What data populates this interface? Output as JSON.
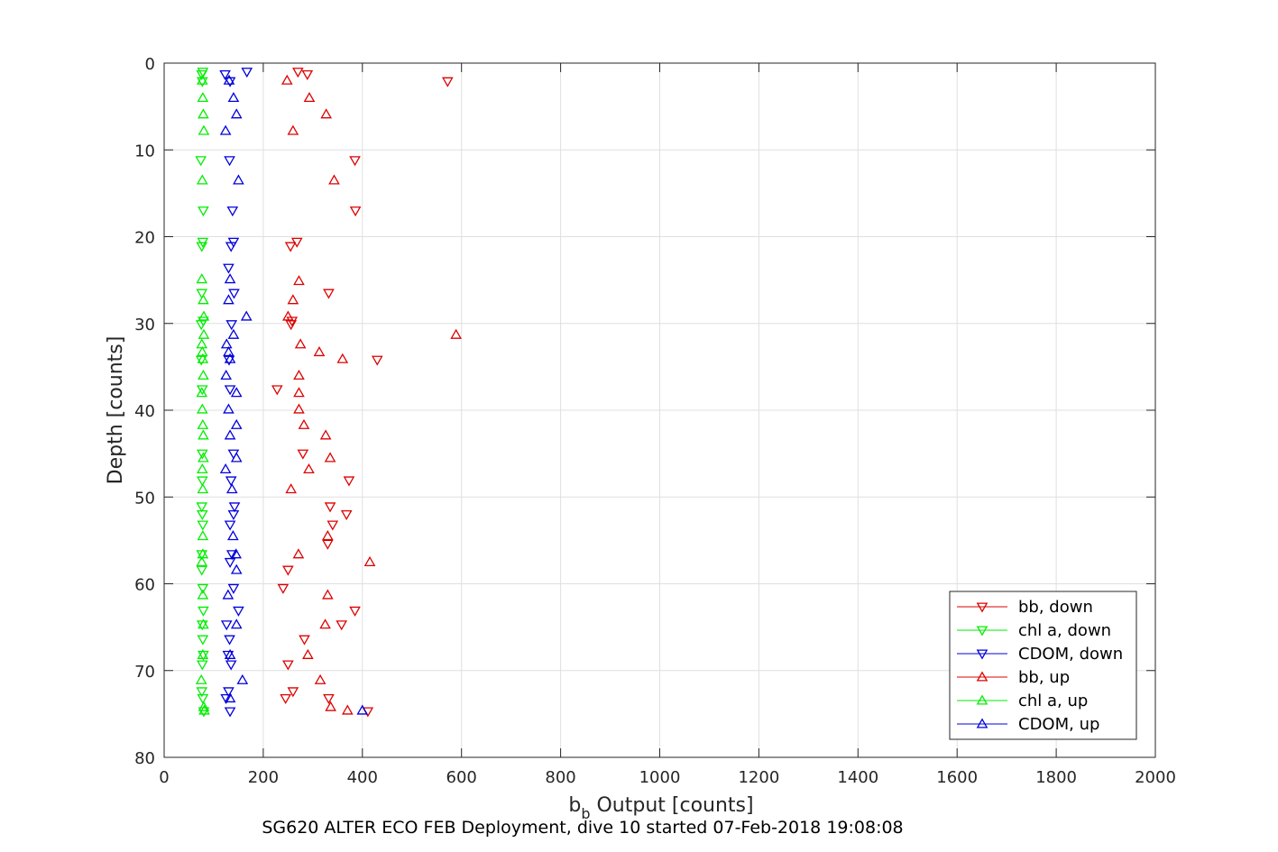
{
  "caption": "SG620 ALTER ECO FEB Deployment, dive 10 started 07-Feb-2018 19:08:08",
  "chart_data": {
    "type": "scatter",
    "xlabel": "b",
    "xlabel_sub": "b",
    "xlabel_rest": " Output [counts]",
    "ylabel": "Depth [counts]",
    "xlim": [
      0,
      2000
    ],
    "ylim": [
      0,
      80
    ],
    "y_reversed": true,
    "grid": true,
    "legend_position": "lower-right",
    "x_ticks": [
      "0",
      "200",
      "400",
      "600",
      "800",
      "1000",
      "1200",
      "1400",
      "1600",
      "1800",
      "2000"
    ],
    "y_ticks": [
      "0",
      "10",
      "20",
      "30",
      "40",
      "50",
      "60",
      "70",
      "80"
    ],
    "series": [
      {
        "name": "bb, down",
        "color": "#dd0000",
        "marker": "triangle-down",
        "points": [
          [
            270,
            1.0
          ],
          [
            289,
            1.3
          ],
          [
            572,
            2.1
          ],
          [
            385,
            11.2
          ],
          [
            386,
            17.0
          ],
          [
            268,
            20.6
          ],
          [
            255,
            21.1
          ],
          [
            332,
            26.5
          ],
          [
            258,
            29.7
          ],
          [
            256,
            30.1
          ],
          [
            430,
            34.2
          ],
          [
            228,
            37.6
          ],
          [
            280,
            45.0
          ],
          [
            373,
            48.1
          ],
          [
            335,
            51.1
          ],
          [
            368,
            52.0
          ],
          [
            340,
            53.2
          ],
          [
            330,
            55.4
          ],
          [
            250,
            58.4
          ],
          [
            240,
            60.5
          ],
          [
            385,
            63.1
          ],
          [
            358,
            64.7
          ],
          [
            283,
            66.4
          ],
          [
            250,
            69.3
          ],
          [
            260,
            72.4
          ],
          [
            332,
            73.2
          ],
          [
            245,
            73.2
          ],
          [
            411,
            74.7
          ]
        ]
      },
      {
        "name": "chl a, down",
        "color": "#00ee00",
        "marker": "triangle-down",
        "points": [
          [
            78,
            1.0
          ],
          [
            76,
            1.3
          ],
          [
            77,
            2.1
          ],
          [
            74,
            11.2
          ],
          [
            79,
            17.0
          ],
          [
            78,
            20.6
          ],
          [
            76,
            21.1
          ],
          [
            76,
            26.5
          ],
          [
            79,
            29.7
          ],
          [
            75,
            30.1
          ],
          [
            75,
            34.2
          ],
          [
            77,
            37.6
          ],
          [
            77,
            45.0
          ],
          [
            77,
            48.1
          ],
          [
            76,
            51.1
          ],
          [
            77,
            52.0
          ],
          [
            78,
            53.2
          ],
          [
            76,
            56.6
          ],
          [
            76,
            58.4
          ],
          [
            78,
            60.5
          ],
          [
            79,
            63.1
          ],
          [
            77,
            64.7
          ],
          [
            78,
            66.4
          ],
          [
            79,
            68.2
          ],
          [
            77,
            69.3
          ],
          [
            76,
            72.4
          ],
          [
            78,
            73.2
          ],
          [
            80,
            74.7
          ]
        ]
      },
      {
        "name": "CDOM, down",
        "color": "#0000dd",
        "marker": "triangle-down",
        "points": [
          [
            167,
            1.0
          ],
          [
            123,
            1.3
          ],
          [
            133,
            2.1
          ],
          [
            132,
            11.2
          ],
          [
            138,
            17.0
          ],
          [
            140,
            20.6
          ],
          [
            135,
            21.1
          ],
          [
            130,
            23.6
          ],
          [
            141,
            26.5
          ],
          [
            136,
            30.1
          ],
          [
            131,
            34.2
          ],
          [
            133,
            37.6
          ],
          [
            140,
            45.0
          ],
          [
            135,
            48.1
          ],
          [
            142,
            51.1
          ],
          [
            140,
            52.0
          ],
          [
            133,
            53.2
          ],
          [
            137,
            56.6
          ],
          [
            133,
            57.5
          ],
          [
            140,
            60.5
          ],
          [
            150,
            63.1
          ],
          [
            126,
            64.7
          ],
          [
            132,
            66.4
          ],
          [
            129,
            68.2
          ],
          [
            135,
            69.3
          ],
          [
            130,
            72.4
          ],
          [
            125,
            73.2
          ],
          [
            133,
            74.7
          ]
        ]
      },
      {
        "name": "bb, up",
        "color": "#dd0000",
        "marker": "triangle-up",
        "points": [
          [
            248,
            2.0
          ],
          [
            293,
            4.0
          ],
          [
            327,
            5.9
          ],
          [
            260,
            7.8
          ],
          [
            343,
            13.5
          ],
          [
            272,
            25.1
          ],
          [
            260,
            27.3
          ],
          [
            250,
            29.2
          ],
          [
            589,
            31.3
          ],
          [
            275,
            32.4
          ],
          [
            313,
            33.3
          ],
          [
            360,
            34.1
          ],
          [
            272,
            36.0
          ],
          [
            272,
            38.0
          ],
          [
            272,
            39.9
          ],
          [
            282,
            41.7
          ],
          [
            326,
            42.9
          ],
          [
            335,
            45.5
          ],
          [
            292,
            46.8
          ],
          [
            256,
            49.1
          ],
          [
            330,
            54.5
          ],
          [
            271,
            56.6
          ],
          [
            415,
            57.5
          ],
          [
            330,
            61.3
          ],
          [
            325,
            64.7
          ],
          [
            290,
            68.2
          ],
          [
            315,
            71.1
          ],
          [
            336,
            74.2
          ],
          [
            370,
            74.6
          ]
        ]
      },
      {
        "name": "chl a, up",
        "color": "#00ee00",
        "marker": "triangle-up",
        "points": [
          [
            77,
            2.0
          ],
          [
            78,
            4.0
          ],
          [
            79,
            5.9
          ],
          [
            80,
            7.8
          ],
          [
            77,
            13.5
          ],
          [
            76,
            24.9
          ],
          [
            79,
            27.3
          ],
          [
            80,
            29.2
          ],
          [
            80,
            31.3
          ],
          [
            76,
            32.4
          ],
          [
            77,
            33.3
          ],
          [
            78,
            34.1
          ],
          [
            79,
            36.0
          ],
          [
            76,
            38.0
          ],
          [
            77,
            39.9
          ],
          [
            78,
            41.7
          ],
          [
            79,
            42.9
          ],
          [
            79,
            45.5
          ],
          [
            77,
            46.8
          ],
          [
            78,
            49.1
          ],
          [
            78,
            54.5
          ],
          [
            78,
            56.6
          ],
          [
            76,
            57.5
          ],
          [
            78,
            61.3
          ],
          [
            79,
            64.7
          ],
          [
            78,
            68.2
          ],
          [
            75,
            71.1
          ],
          [
            80,
            74.2
          ],
          [
            81,
            74.6
          ]
        ]
      },
      {
        "name": "CDOM, up",
        "color": "#0000dd",
        "marker": "triangle-up",
        "points": [
          [
            131,
            2.0
          ],
          [
            140,
            4.0
          ],
          [
            146,
            5.9
          ],
          [
            124,
            7.8
          ],
          [
            150,
            13.5
          ],
          [
            133,
            24.9
          ],
          [
            130,
            27.3
          ],
          [
            166,
            29.2
          ],
          [
            140,
            31.3
          ],
          [
            126,
            32.4
          ],
          [
            130,
            33.3
          ],
          [
            133,
            34.1
          ],
          [
            125,
            36.0
          ],
          [
            146,
            38.0
          ],
          [
            130,
            39.9
          ],
          [
            146,
            41.7
          ],
          [
            133,
            42.9
          ],
          [
            146,
            45.5
          ],
          [
            124,
            46.8
          ],
          [
            137,
            49.1
          ],
          [
            139,
            54.5
          ],
          [
            145,
            56.6
          ],
          [
            146,
            58.4
          ],
          [
            129,
            61.3
          ],
          [
            146,
            64.7
          ],
          [
            133,
            68.2
          ],
          [
            158,
            71.1
          ],
          [
            133,
            73.2
          ],
          [
            400,
            74.6
          ]
        ]
      }
    ]
  }
}
